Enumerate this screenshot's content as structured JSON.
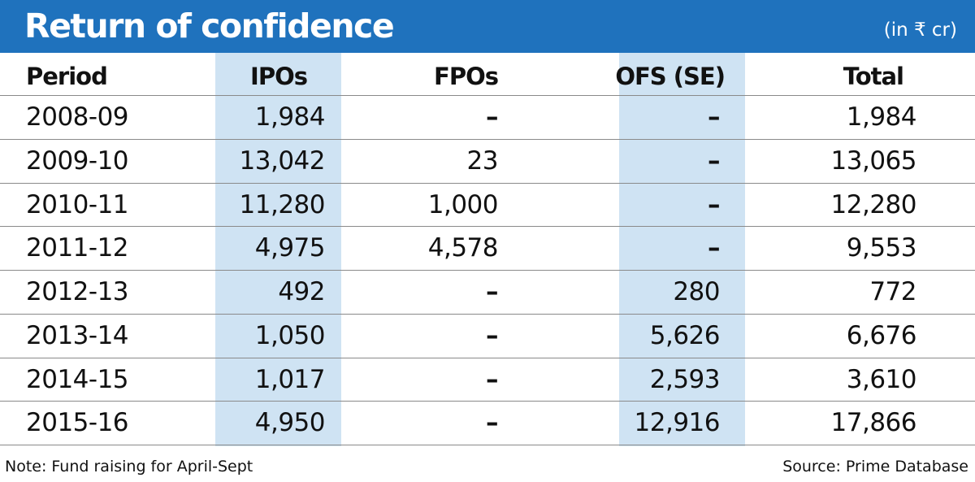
{
  "title": "Return of confidence",
  "unit": "(in ₹ cr)",
  "chart_data": {
    "type": "table",
    "columns": [
      "Period",
      "IPOs",
      "FPOs",
      "OFS (SE)",
      "Total"
    ],
    "rows": [
      [
        "2008-09",
        "1,984",
        "–",
        "–",
        "1,984"
      ],
      [
        "2009-10",
        "13,042",
        "23",
        "–",
        "13,065"
      ],
      [
        "2010-11",
        "11,280",
        "1,000",
        "–",
        "12,280"
      ],
      [
        "2011-12",
        "4,975",
        "4,578",
        "–",
        "9,553"
      ],
      [
        "2012-13",
        "492",
        "–",
        "280",
        "772"
      ],
      [
        "2013-14",
        "1,050",
        "–",
        "5,626",
        "6,676"
      ],
      [
        "2014-15",
        "1,017",
        "–",
        "2,593",
        "3,610"
      ],
      [
        "2015-16",
        "4,950",
        "–",
        "12,916",
        "17,866"
      ]
    ]
  },
  "note": "Note: Fund raising for April-Sept",
  "source": "Source: Prime Database",
  "colors": {
    "title_bar": "#1f72bd",
    "column_shade": "#cfe3f3"
  }
}
